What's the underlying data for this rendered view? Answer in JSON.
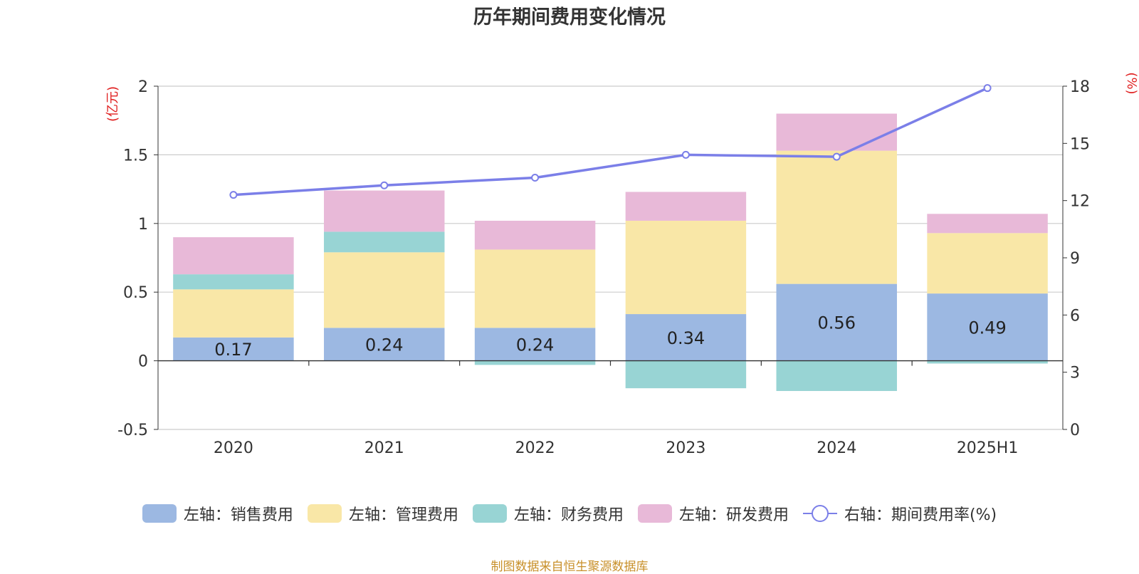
{
  "title": "历年期间费用变化情况",
  "source_note": "制图数据来自恒生聚源数据库",
  "colors": {
    "sales": "#9cb8e2",
    "admin": "#f9e7a7",
    "finance": "#98d4d4",
    "rnd": "#e8b9d8",
    "rate": "#7b7fe8"
  },
  "chart_data": {
    "type": "bar",
    "stacked": true,
    "categories": [
      "2020",
      "2021",
      "2022",
      "2023",
      "2024",
      "2025H1"
    ],
    "ylabel": "(亿元)",
    "y2label": "(%)",
    "ylim": [
      -0.5,
      2
    ],
    "y2lim": [
      0,
      18
    ],
    "yticks": [
      "2",
      "1.5",
      "1",
      "0.5",
      "0",
      "-0.5"
    ],
    "y2ticks": [
      "18",
      "15",
      "12",
      "9",
      "6",
      "3",
      "0"
    ],
    "grid": true,
    "legend_position": "bottom",
    "series": [
      {
        "name": "左轴：销售费用",
        "key": "sales",
        "values": [
          0.17,
          0.24,
          0.24,
          0.34,
          0.56,
          0.49
        ],
        "labels": [
          "0.17",
          "0.24",
          "0.24",
          "0.34",
          "0.56",
          "0.49"
        ]
      },
      {
        "name": "左轴：管理费用",
        "key": "admin",
        "values": [
          0.35,
          0.55,
          0.57,
          0.68,
          0.97,
          0.44
        ]
      },
      {
        "name": "左轴：财务费用",
        "key": "finance",
        "values": [
          0.11,
          0.15,
          -0.03,
          -0.2,
          -0.22,
          -0.02
        ]
      },
      {
        "name": "左轴：研发费用",
        "key": "rnd",
        "values": [
          0.27,
          0.3,
          0.21,
          0.21,
          0.27,
          0.14
        ]
      }
    ],
    "line_series": {
      "name": "右轴：期间费用率(%)",
      "key": "rate",
      "axis": "right",
      "values": [
        12.3,
        12.8,
        13.2,
        14.4,
        14.3,
        17.9
      ]
    }
  }
}
